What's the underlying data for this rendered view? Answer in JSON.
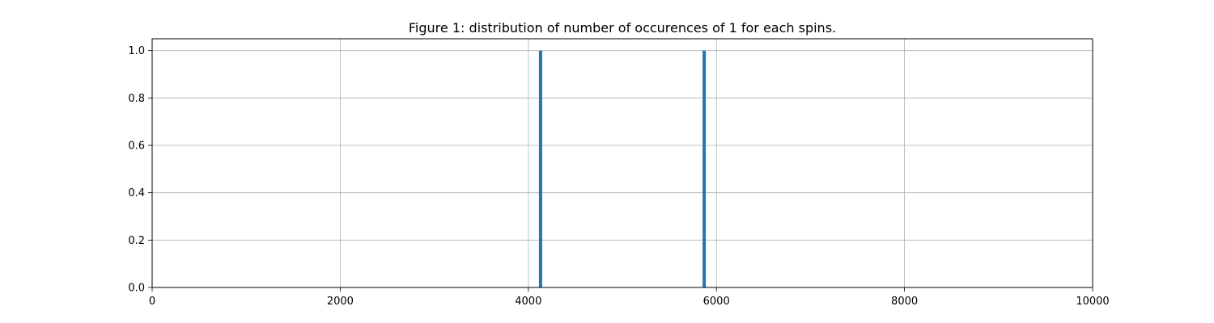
{
  "chart_data": {
    "type": "bar",
    "title": "Figure 1: distribution of number of occurences of 1 for each spins.",
    "xlabel": "",
    "ylabel": "",
    "xlim": [
      0,
      10000
    ],
    "ylim": [
      0,
      1.05
    ],
    "xticks": [
      0,
      2000,
      4000,
      6000,
      8000,
      10000
    ],
    "xtick_labels": [
      "0",
      "2000",
      "4000",
      "6000",
      "8000",
      "10000"
    ],
    "yticks": [
      0,
      0.2,
      0.4,
      0.6,
      0.8,
      1.0
    ],
    "ytick_labels": [
      "0.0",
      "0.2",
      "0.4",
      "0.6",
      "0.8",
      "1.0"
    ],
    "grid": true,
    "series": [
      {
        "color": "#1f77b4",
        "bars": [
          {
            "x": 4130,
            "value": 1.0
          },
          {
            "x": 5870,
            "value": 1.0
          }
        ]
      }
    ]
  }
}
